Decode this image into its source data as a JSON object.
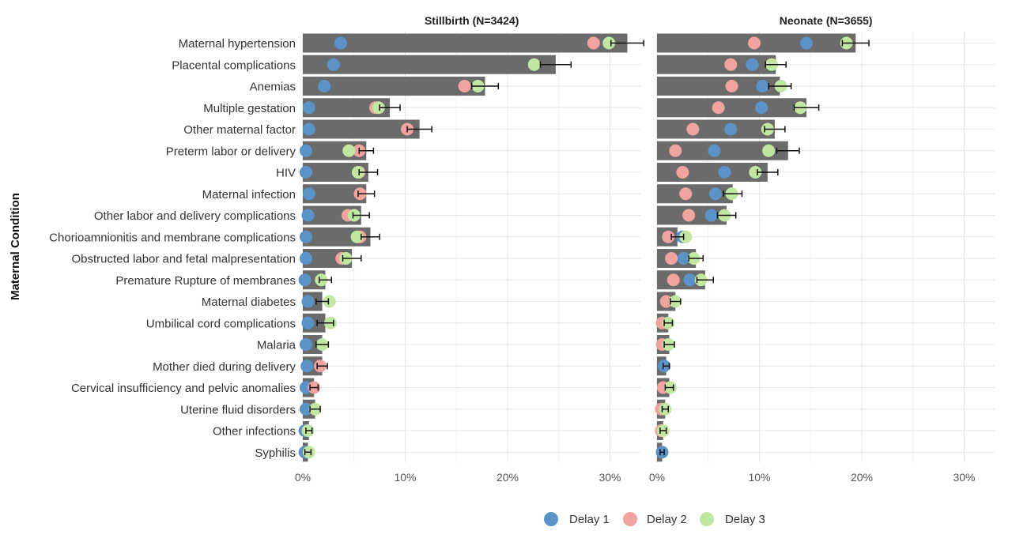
{
  "chart_data": {
    "type": "bar",
    "ylabel": "Maternal Condition",
    "x_tick_labels": [
      "0%",
      "10%",
      "20%",
      "30%"
    ],
    "xlim": [
      0,
      33
    ],
    "grid": true,
    "legend": {
      "placement": "bottom",
      "entries": [
        {
          "name": "Delay 1",
          "color": "#5b93c9"
        },
        {
          "name": "Delay 2",
          "color": "#f0a39f"
        },
        {
          "name": "Delay 3",
          "color": "#c2e7a1"
        }
      ]
    },
    "bar_color": "#6b6b6b",
    "categories": [
      "Maternal hypertension",
      "Placental complications",
      "Anemias",
      "Multiple gestation",
      "Other maternal factor",
      "Preterm labor or delivery",
      "HIV",
      "Maternal infection",
      "Other labor and delivery complications",
      "Chorioamnionitis and membrane complications",
      "Obstructed labor and fetal malpresentation",
      "Premature Rupture of membranes",
      "Maternal diabetes",
      "Umbilical cord complications",
      "Malaria",
      "Mother died during delivery",
      "Cervical insufficiency and pelvic anomalies",
      "Uterine fluid disorders",
      "Other infections",
      "Syphilis"
    ],
    "panels": [
      {
        "title": "Stillbirth (N=3424)",
        "bar_values": [
          31.7,
          24.7,
          17.8,
          8.5,
          11.4,
          6.2,
          6.4,
          6.2,
          5.7,
          6.6,
          4.8,
          2.2,
          1.9,
          2.2,
          1.9,
          1.9,
          1.1,
          1.2,
          0.6,
          0.5
        ],
        "error": [
          1.6,
          1.5,
          1.3,
          1.0,
          1.2,
          0.7,
          0.9,
          0.8,
          0.8,
          0.9,
          0.9,
          0.6,
          0.6,
          0.8,
          0.6,
          0.5,
          0.4,
          0.5,
          0.3,
          0.3
        ],
        "delay1": [
          3.7,
          3.0,
          2.1,
          0.6,
          0.6,
          0.3,
          0.3,
          0.6,
          0.5,
          0.3,
          0.3,
          0.2,
          0.5,
          0.5,
          0.3,
          0.4,
          0.3,
          0.3,
          0.2,
          0.2
        ],
        "delay2": [
          28.4,
          null,
          15.8,
          7.1,
          10.2,
          5.5,
          5.5,
          5.6,
          4.4,
          5.6,
          3.8,
          null,
          null,
          null,
          null,
          1.7,
          1.1,
          null,
          null,
          null
        ],
        "delay3": [
          29.9,
          22.6,
          17.1,
          7.4,
          null,
          4.5,
          5.4,
          null,
          5.0,
          5.3,
          4.2,
          1.8,
          2.6,
          2.7,
          1.9,
          null,
          null,
          1.2,
          0.5,
          0.6
        ]
      },
      {
        "title": "Neonate (N=3655)",
        "bar_values": [
          19.4,
          11.6,
          12.0,
          14.6,
          11.5,
          12.8,
          10.8,
          7.4,
          6.8,
          2.0,
          3.8,
          4.7,
          1.8,
          1.1,
          1.2,
          0.9,
          1.2,
          0.8,
          0.6,
          0.5
        ],
        "error": [
          1.3,
          1.0,
          1.1,
          1.2,
          1.0,
          1.1,
          1.0,
          0.9,
          0.9,
          0.6,
          0.7,
          0.8,
          0.5,
          0.4,
          0.5,
          0.3,
          0.4,
          0.3,
          0.3,
          0.2
        ],
        "delay1": [
          14.6,
          9.3,
          10.3,
          10.2,
          7.2,
          5.6,
          6.6,
          5.7,
          5.3,
          2.5,
          2.6,
          3.2,
          null,
          null,
          null,
          0.7,
          null,
          null,
          null,
          0.5
        ],
        "delay2": [
          9.5,
          7.2,
          7.3,
          6.0,
          3.5,
          1.8,
          2.5,
          2.8,
          3.1,
          1.1,
          1.4,
          1.6,
          0.9,
          0.5,
          0.5,
          null,
          0.6,
          0.4,
          0.4,
          null
        ],
        "delay3": [
          18.5,
          11.2,
          12.1,
          14.0,
          10.8,
          10.9,
          9.6,
          7.3,
          6.6,
          2.8,
          3.6,
          4.3,
          1.8,
          1.1,
          1.1,
          null,
          1.3,
          0.8,
          0.6,
          null
        ]
      }
    ]
  }
}
